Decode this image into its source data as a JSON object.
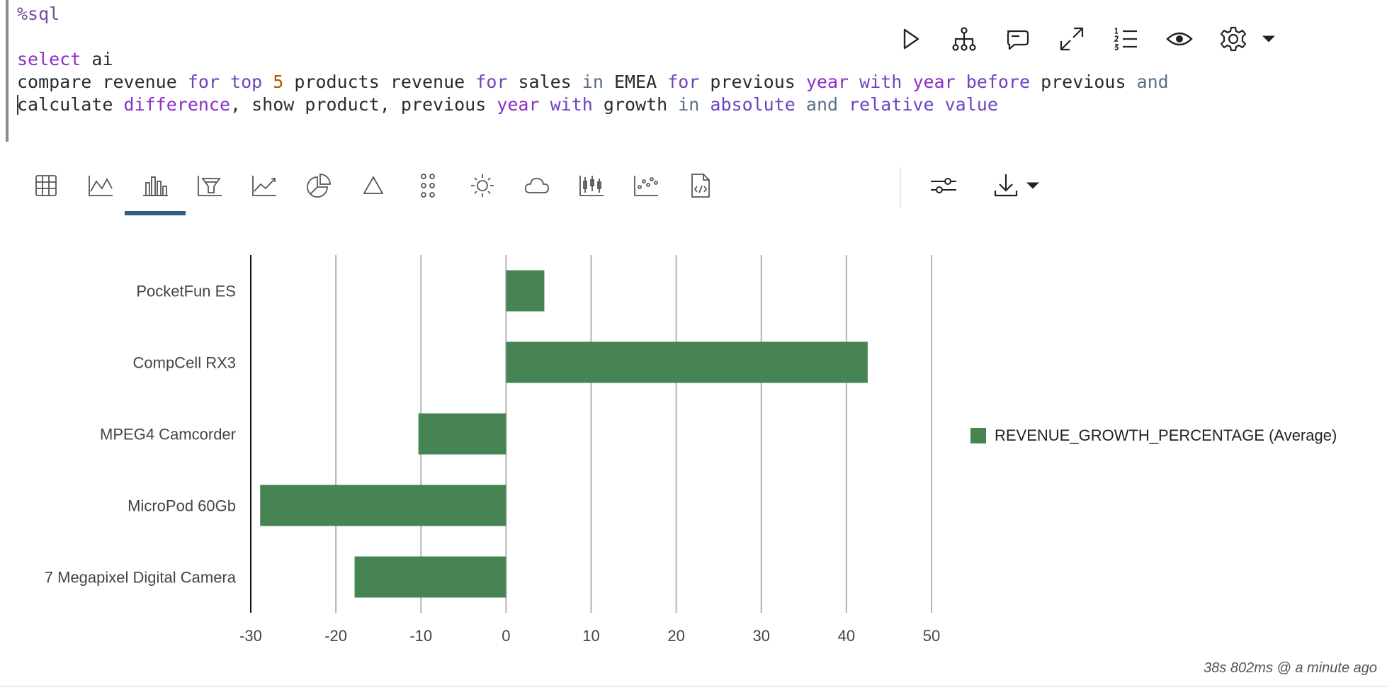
{
  "editor": {
    "line1": "%sql",
    "line2": "",
    "line3": "select ai",
    "line4": [
      {
        "t": "compare revenue ",
        "c": ""
      },
      {
        "t": "for",
        "c": "kw-violet"
      },
      {
        "t": " ",
        "c": ""
      },
      {
        "t": "top",
        "c": "kw-violet"
      },
      {
        "t": " ",
        "c": ""
      },
      {
        "t": "5",
        "c": "num"
      },
      {
        "t": " products revenue ",
        "c": ""
      },
      {
        "t": "for",
        "c": "kw-violet"
      },
      {
        "t": " sales ",
        "c": ""
      },
      {
        "t": "in",
        "c": "kw-slate"
      },
      {
        "t": " EMEA ",
        "c": ""
      },
      {
        "t": "for",
        "c": "kw-violet"
      },
      {
        "t": " previous ",
        "c": ""
      },
      {
        "t": "year",
        "c": "kw-purple"
      },
      {
        "t": " ",
        "c": ""
      },
      {
        "t": "with",
        "c": "kw-violet"
      },
      {
        "t": " ",
        "c": ""
      },
      {
        "t": "year",
        "c": "kw-purple"
      },
      {
        "t": " ",
        "c": ""
      },
      {
        "t": "before",
        "c": "kw-violet"
      },
      {
        "t": " previous ",
        "c": ""
      },
      {
        "t": "and",
        "c": "kw-slate"
      }
    ],
    "line5": [
      {
        "t": "calculate ",
        "c": ""
      },
      {
        "t": "difference",
        "c": "kw-purple"
      },
      {
        "t": ", show product, previous ",
        "c": ""
      },
      {
        "t": "year",
        "c": "kw-purple"
      },
      {
        "t": " ",
        "c": ""
      },
      {
        "t": "with",
        "c": "kw-violet"
      },
      {
        "t": " growth ",
        "c": ""
      },
      {
        "t": "in",
        "c": "kw-slate"
      },
      {
        "t": " ",
        "c": ""
      },
      {
        "t": "absolute",
        "c": "kw-violet"
      },
      {
        "t": " ",
        "c": ""
      },
      {
        "t": "and",
        "c": "kw-slate"
      },
      {
        "t": " ",
        "c": ""
      },
      {
        "t": "relative",
        "c": "kw-violet"
      },
      {
        "t": " ",
        "c": ""
      },
      {
        "t": "value",
        "c": "kw-violet"
      }
    ]
  },
  "toolbar_top": [
    "run-icon",
    "hierarchy-icon",
    "comment-icon",
    "expand-icon",
    "ordered-list-icon",
    "eye-icon",
    "gear-icon",
    "caret-down-icon"
  ],
  "viz_toolbar": {
    "buttons": [
      "table-icon",
      "line-chart-icon",
      "bar-chart-icon",
      "funnel-chart-icon",
      "area-chart-icon",
      "pie-chart-icon",
      "pyramid-icon",
      "dot-grid-icon",
      "sunburst-icon",
      "cloud-icon",
      "boxplot-icon",
      "scatter-icon",
      "code-file-icon"
    ],
    "active": "bar-chart-icon",
    "extra": [
      "settings-sliders-icon",
      "download-icon",
      "caret-down-icon"
    ]
  },
  "chart_data": {
    "type": "bar",
    "orientation": "horizontal",
    "categories": [
      "PocketFun ES",
      "CompCell RX3",
      "MPEG4 Camcorder",
      "MicroPod 60Gb",
      "7 Megapixel Digital Camera"
    ],
    "series": [
      {
        "name": "REVENUE_GROWTH_PERCENTAGE (Average)",
        "values": [
          4.5,
          42.5,
          -10.3,
          -28.9,
          -17.8
        ]
      }
    ],
    "xticks": [
      "-30",
      "-20",
      "-10",
      "0",
      "10",
      "20",
      "30",
      "40",
      "50"
    ],
    "xlim": [
      -30,
      50
    ],
    "grid": true,
    "legend_position": "right",
    "color": "#468454"
  },
  "legend": {
    "label": "REVENUE_GROWTH_PERCENTAGE (Average)"
  },
  "status": {
    "text": "38s 802ms @ a minute ago"
  }
}
